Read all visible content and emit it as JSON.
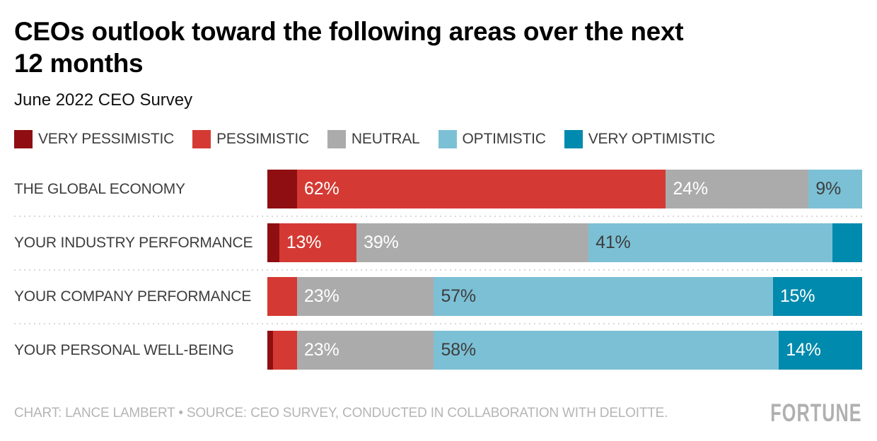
{
  "page": {
    "title_lines": [
      "CEOs outlook toward the following areas over the next",
      "12 months"
    ],
    "subtitle": "June 2022 CEO Survey",
    "footer": {
      "credit": "CHART: LANCE LAMBERT • SOURCE: CEO SURVEY, CONDUCTED IN COLLABORATION WITH DELOITTE.",
      "brand": "FORTUNE"
    }
  },
  "colors": {
    "very_pessimistic": "#8f0e12",
    "pessimistic": "#d43a33",
    "neutral": "#ababab",
    "optimistic": "#7cc0d5",
    "very_optimistic": "#008aad",
    "label_light": "#ffffff",
    "label_dark": "#3d3d3d"
  },
  "chart_data": {
    "type": "bar",
    "orientation": "horizontal-stacked",
    "title": "CEOs outlook toward the following areas over the next 12 months",
    "subtitle": "June 2022 CEO Survey",
    "unit": "%",
    "xlim": [
      0,
      100
    ],
    "grid": "off",
    "legend_position": "top",
    "categories": [
      "THE GLOBAL ECONOMY",
      "YOUR INDUSTRY PERFORMANCE",
      "YOUR COMPANY PERFORMANCE",
      "YOUR PERSONAL WELL-BEING"
    ],
    "series": [
      {
        "name": "VERY PESSIMISTIC",
        "color": "#8f0e12",
        "label_color": "#ffffff",
        "values": [
          5,
          2,
          0,
          1
        ],
        "labels": [
          "",
          "",
          "",
          ""
        ]
      },
      {
        "name": "PESSIMISTIC",
        "color": "#d43a33",
        "label_color": "#ffffff",
        "values": [
          62,
          13,
          5,
          4
        ],
        "labels": [
          "62%",
          "13%",
          "",
          ""
        ]
      },
      {
        "name": "NEUTRAL",
        "color": "#ababab",
        "label_color": "#ffffff",
        "values": [
          24,
          39,
          23,
          23
        ],
        "labels": [
          "24%",
          "39%",
          "23%",
          "23%"
        ]
      },
      {
        "name": "OPTIMISTIC",
        "color": "#7cc0d5",
        "label_color": "#3d3d3d",
        "values": [
          9,
          41,
          57,
          58
        ],
        "labels": [
          "9%",
          "41%",
          "57%",
          "58%"
        ]
      },
      {
        "name": "VERY OPTIMISTIC",
        "color": "#008aad",
        "label_color": "#ffffff",
        "values": [
          0,
          5,
          15,
          14
        ],
        "labels": [
          "",
          "",
          "15%",
          "14%"
        ]
      }
    ]
  }
}
